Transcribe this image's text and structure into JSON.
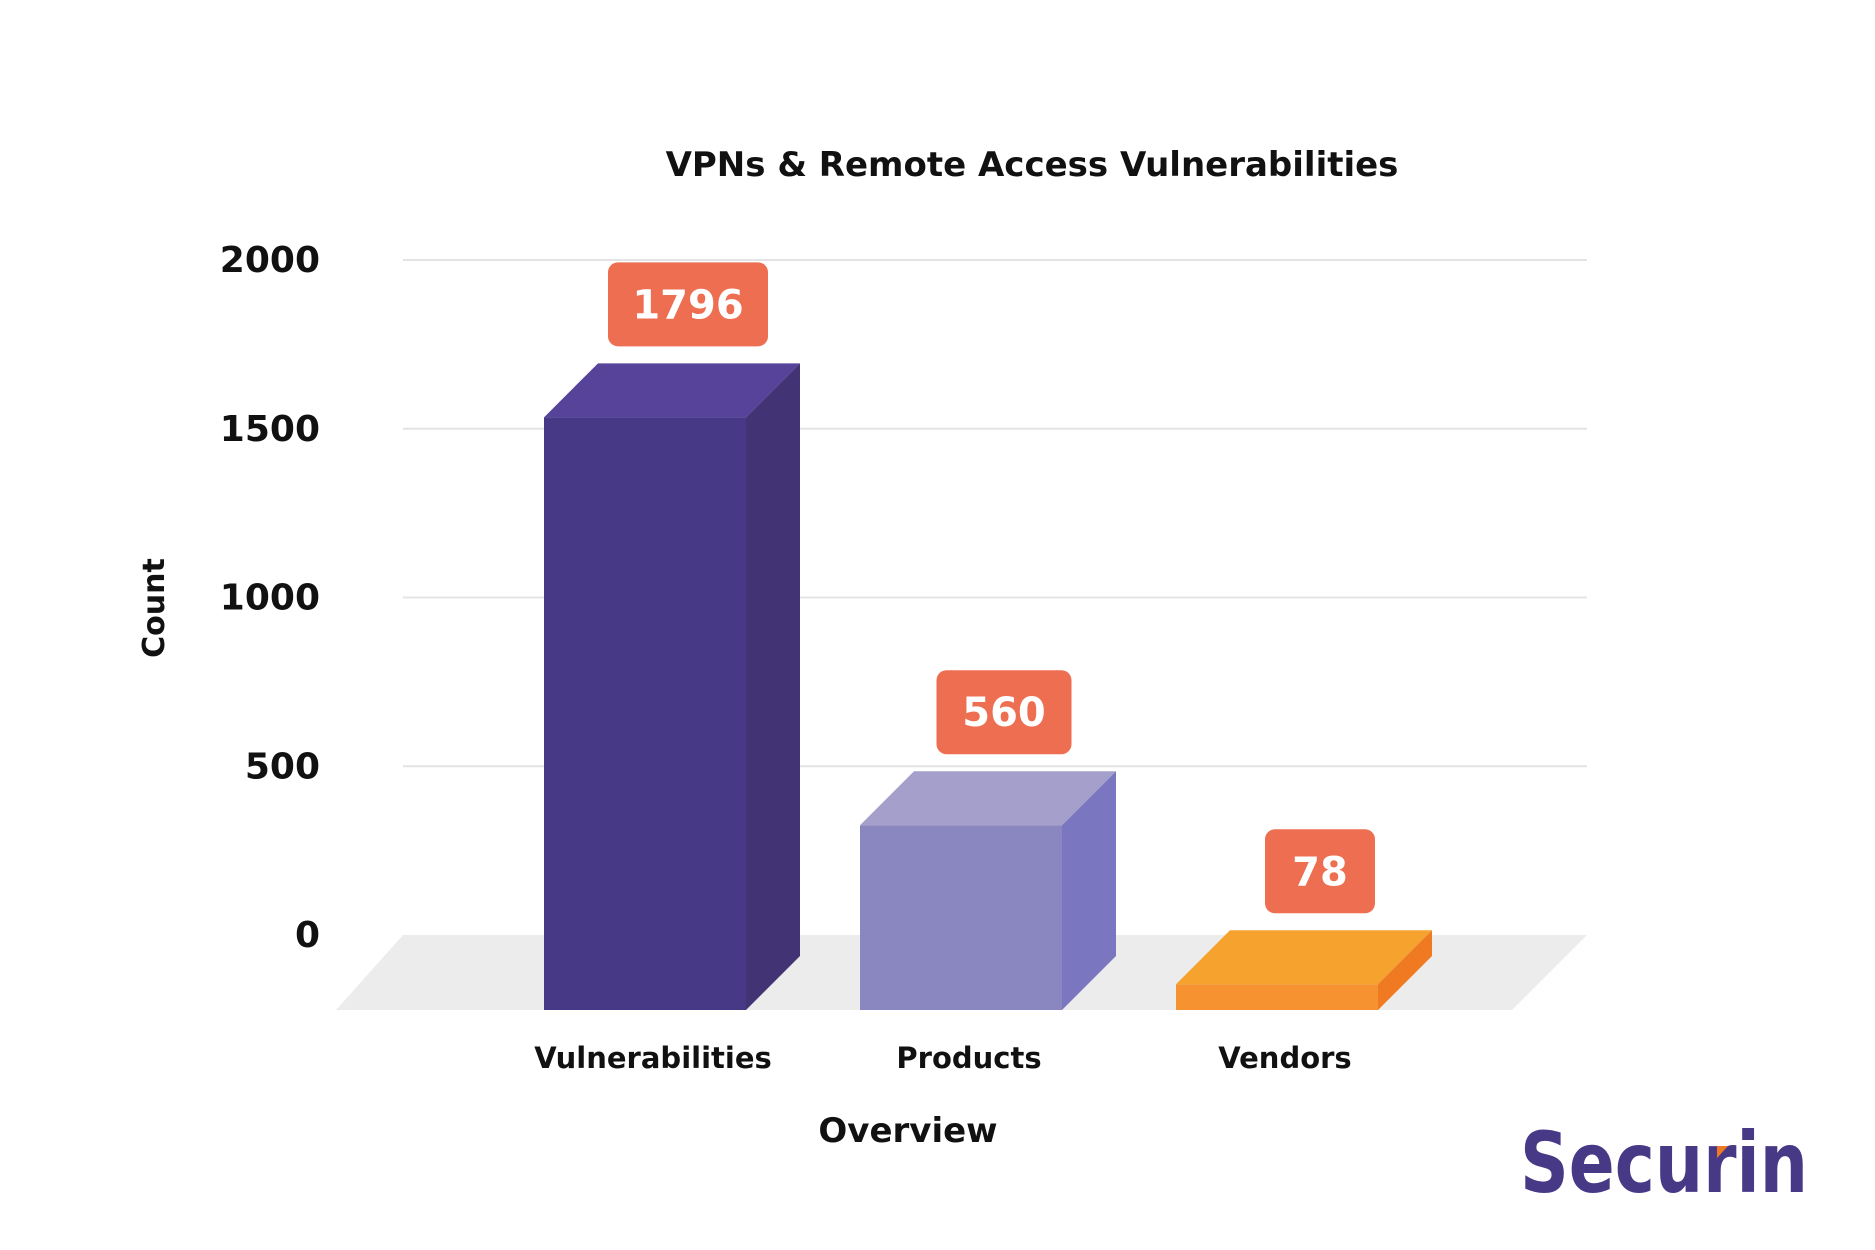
{
  "chart_data": {
    "type": "bar",
    "style": "3d",
    "title": "VPNs & Remote Access Vulnerabilities",
    "xlabel": "Overview",
    "ylabel": "Count",
    "ylim": [
      0,
      2000
    ],
    "yticks": [
      "0",
      "500",
      "1000",
      "1500",
      "2000"
    ],
    "grid": true,
    "categories": [
      "Vulnerabilities",
      "Products",
      "Vendors"
    ],
    "values": [
      1796,
      560,
      78
    ],
    "data_labels": [
      "1796",
      "560",
      "78"
    ],
    "colors": [
      {
        "front": "#483987",
        "top": "#57449a",
        "side": "#423375"
      },
      {
        "front": "#8a87c0",
        "top": "#a4a0cb",
        "side": "#7b76c0"
      },
      {
        "front": "#f6922f",
        "top": "#f5a32e",
        "side": "#ef7a22"
      }
    ],
    "label_color": "#ee6e51"
  },
  "logo": {
    "text": "Securin",
    "color": "#483987",
    "accent": "#ef7a22"
  }
}
